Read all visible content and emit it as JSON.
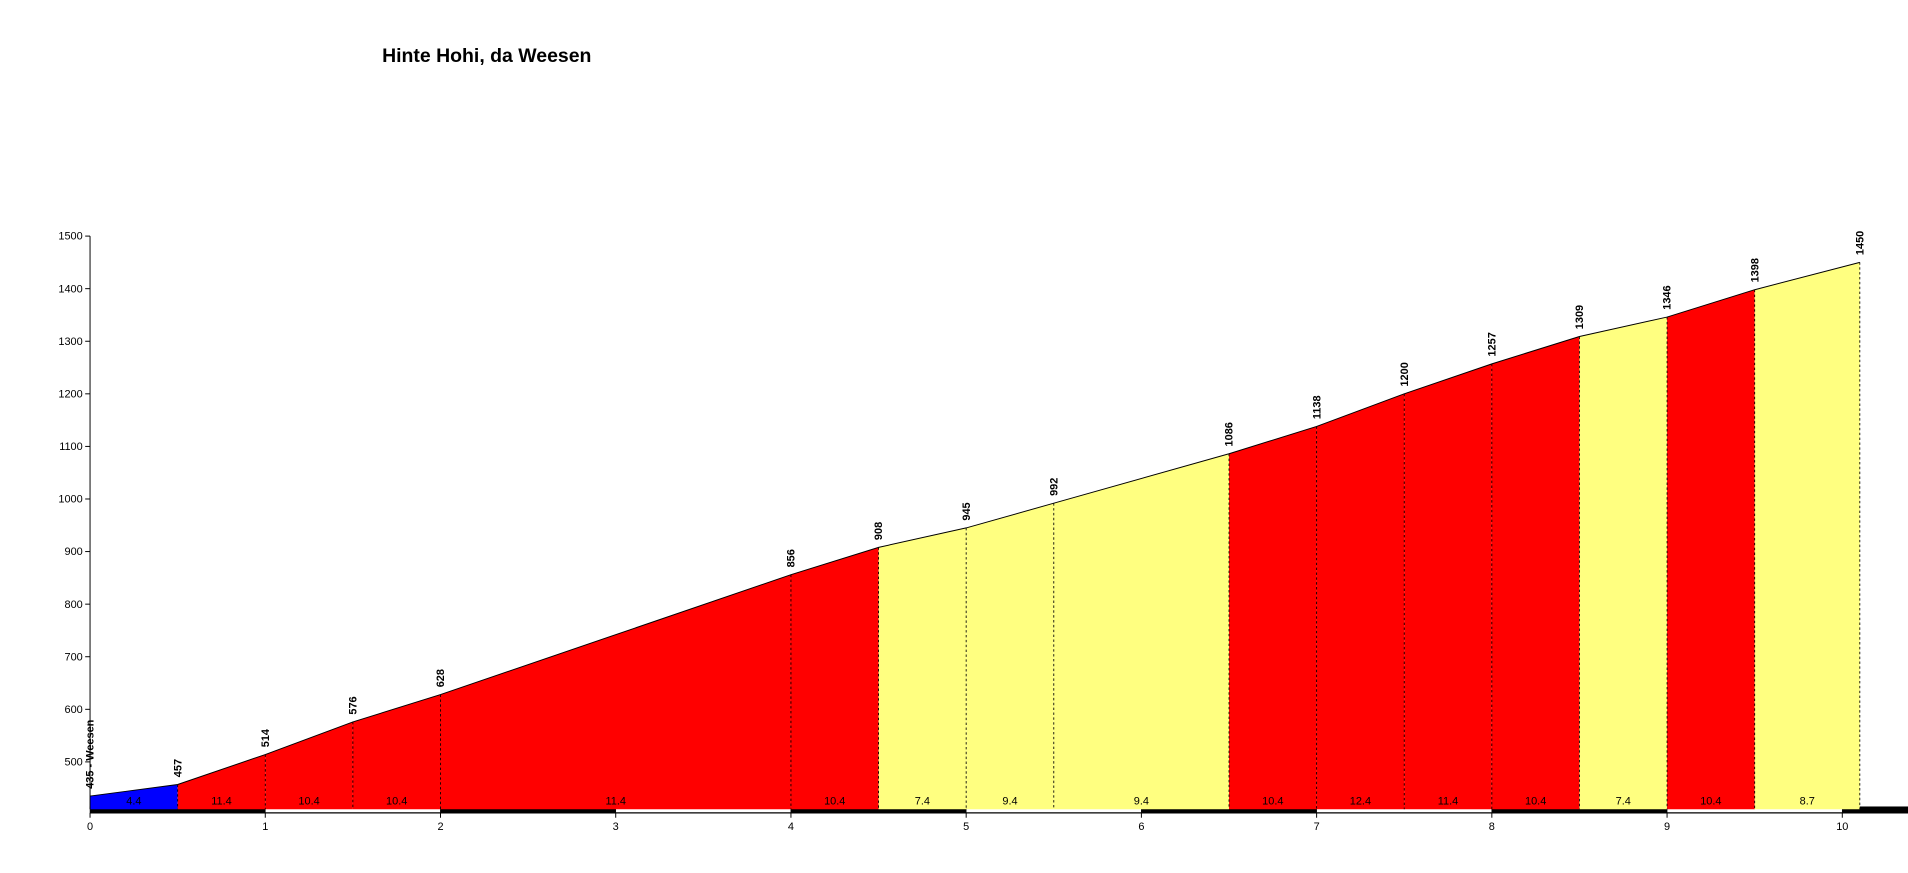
{
  "chart_data": {
    "type": "area",
    "title": "Hinte Hohi, da Weesen",
    "x": [
      0,
      0.5,
      1,
      1.5,
      2,
      4,
      4.5,
      5,
      5.5,
      6.5,
      7,
      7.5,
      8,
      8.5,
      9,
      9.5,
      10.1
    ],
    "values": [
      435,
      457,
      514,
      576,
      628,
      856,
      908,
      945,
      992,
      1086,
      1138,
      1200,
      1257,
      1309,
      1346,
      1398,
      1450
    ],
    "value_labels": [
      "435 - Weesen",
      "457",
      "514",
      "576",
      "628",
      "856",
      "908",
      "945",
      "992",
      "1086",
      "1138",
      "1200",
      "1257",
      "1309",
      "1346",
      "1398",
      "1450"
    ],
    "gradients": [
      4.4,
      11.4,
      10.4,
      10.4,
      11.4,
      10.4,
      7.4,
      9.4,
      9.4,
      10.4,
      12.4,
      11.4,
      10.4,
      7.4,
      10.4,
      8.7
    ],
    "segment_colors": [
      "#0000ff",
      "#ff0000",
      "#ff0000",
      "#ff0000",
      "#ff0000",
      "#ff0000",
      "#ffff80",
      "#ffff80",
      "#ffff80",
      "#ff0000",
      "#ff0000",
      "#ff0000",
      "#ff0000",
      "#ffff80",
      "#ff0000",
      "#ffff80"
    ],
    "xlim": [
      0,
      10.4
    ],
    "ylim": [
      410,
      1500
    ],
    "xticks": [
      0,
      1,
      2,
      3,
      4,
      5,
      6,
      7,
      8,
      9,
      10
    ],
    "yticks": [
      500,
      600,
      700,
      800,
      900,
      1000,
      1100,
      1200,
      1300,
      1400,
      1500
    ]
  }
}
